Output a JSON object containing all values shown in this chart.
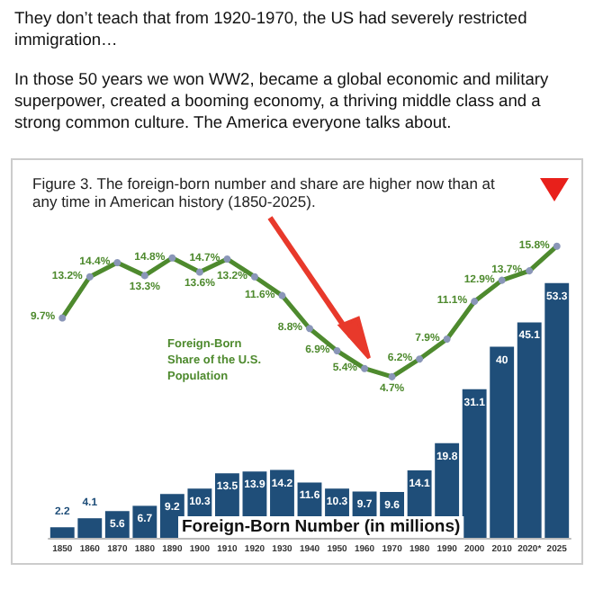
{
  "chart_data": {
    "type": "bar",
    "title": "Figure 3. The foreign-born number and share are higher now than at any time in American history (1850-2025).",
    "annotations": [
      "They don’t teach that from 1920-1970, the US had severely restricted immigration…",
      "In those 50 years we won WW2, became a global economic and military superpower, created a booming economy, a thriving middle class and a strong common culture. The America everyone talks about."
    ],
    "categories": [
      "1850",
      "1860",
      "1870",
      "1880",
      "1890",
      "1900",
      "1910",
      "1920",
      "1930",
      "1940",
      "1950",
      "1960",
      "1970",
      "1980",
      "1990",
      "2000",
      "2010",
      "2020*",
      "2025"
    ],
    "data_labels": true,
    "legend": false,
    "tick_labels": "x",
    "marker": "circle",
    "series": [
      {
        "name": "Foreign-Born Number (in millions)",
        "color": "#1f4e79",
        "values": [
          2.2,
          4.1,
          5.6,
          6.7,
          9.2,
          10.3,
          13.5,
          13.9,
          14.2,
          11.6,
          10.3,
          9.7,
          9.6,
          14.1,
          19.8,
          31.1,
          40,
          45.1,
          53.3
        ]
      },
      {
        "name": "Foreign-Born Share of the U.S. Population",
        "type": "line",
        "axis": "y2",
        "color": "#4e8a2e",
        "values": [
          9.7,
          13.2,
          14.4,
          13.3,
          14.8,
          13.6,
          14.7,
          13.2,
          11.6,
          8.8,
          6.9,
          5.4,
          4.7,
          6.2,
          7.9,
          11.1,
          12.9,
          13.7,
          15.8
        ],
        "value_labels": [
          "9.7%",
          "13.2%",
          "14.4%",
          "13.3%",
          "14.8%",
          "13.6%",
          "14.7%",
          "13.2%",
          "11.6%",
          "8.8%",
          "6.9%",
          "5.4%",
          "4.7%",
          "6.2%",
          "7.9%",
          "11.1%",
          "12.9%",
          "13.7%",
          "15.8%"
        ]
      }
    ]
  }
}
